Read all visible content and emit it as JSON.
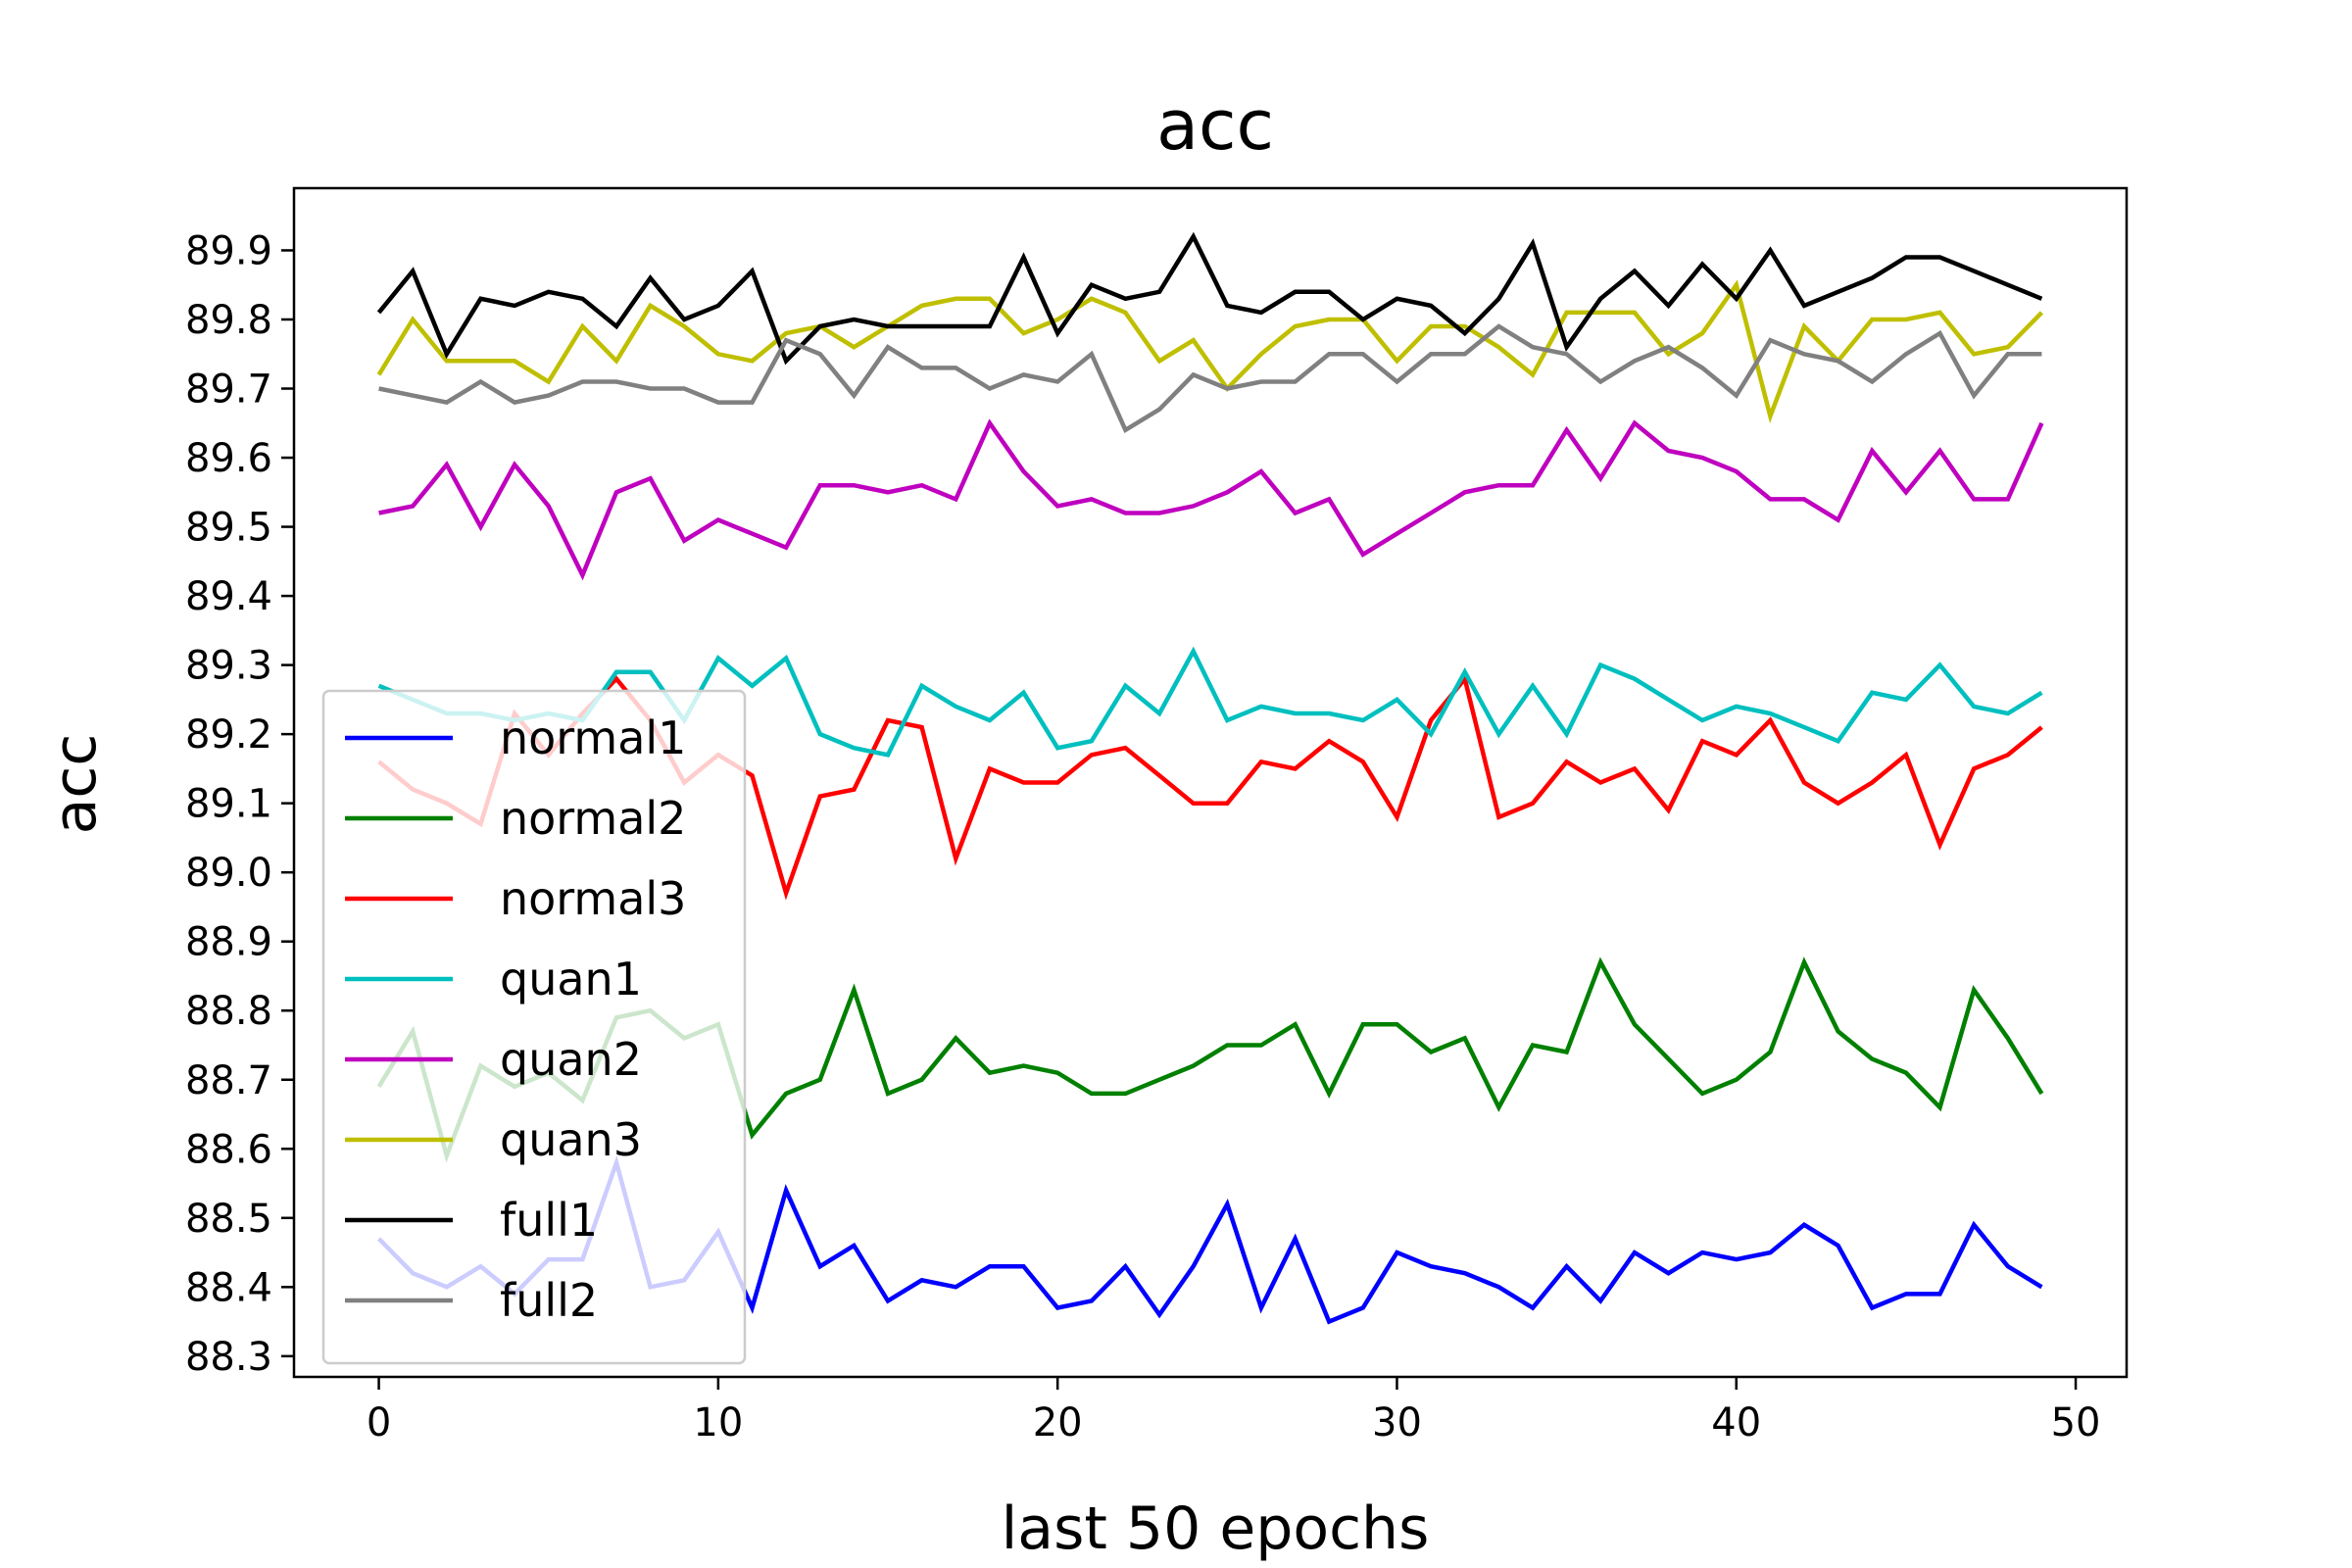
{
  "chart_data": {
    "type": "line",
    "title": "acc",
    "xlabel": "last 50 epochs",
    "ylabel": "acc",
    "xlim": [
      -2.5,
      51.5
    ],
    "ylim": [
      88.27,
      89.99
    ],
    "xticks": [
      0,
      10,
      20,
      30,
      40,
      50
    ],
    "yticks": [
      88.3,
      88.4,
      88.5,
      88.6,
      88.7,
      88.8,
      88.9,
      89.0,
      89.1,
      89.2,
      89.3,
      89.4,
      89.5,
      89.6,
      89.7,
      89.8,
      89.9
    ],
    "ytick_labels": [
      "88.3",
      "88.4",
      "88.5",
      "88.6",
      "88.7",
      "88.8",
      "88.9",
      "89.0",
      "89.1",
      "89.2",
      "89.3",
      "89.4",
      "89.5",
      "89.6",
      "89.7",
      "89.8",
      "89.9"
    ],
    "xtick_labels": [
      "0",
      "10",
      "20",
      "30",
      "40",
      "50"
    ],
    "grid": false,
    "legend_position": "lower-left",
    "x": [
      0,
      1,
      2,
      3,
      4,
      5,
      6,
      7,
      8,
      9,
      10,
      11,
      12,
      13,
      14,
      15,
      16,
      17,
      18,
      19,
      20,
      21,
      22,
      23,
      24,
      25,
      26,
      27,
      28,
      29,
      30,
      31,
      32,
      33,
      34,
      35,
      36,
      37,
      38,
      39,
      40,
      41,
      42,
      43,
      44,
      45,
      46,
      47,
      48,
      49
    ],
    "series": [
      {
        "name": "normal1",
        "color": "#0000ff",
        "values": [
          88.47,
          88.42,
          88.4,
          88.43,
          88.39,
          88.44,
          88.44,
          88.58,
          88.4,
          88.41,
          88.48,
          88.37,
          88.54,
          88.43,
          88.46,
          88.38,
          88.41,
          88.4,
          88.43,
          88.43,
          88.37,
          88.38,
          88.43,
          88.36,
          88.43,
          88.52,
          88.37,
          88.47,
          88.35,
          88.37,
          88.45,
          88.43,
          88.42,
          88.4,
          88.37,
          88.43,
          88.38,
          88.45,
          88.42,
          88.45,
          88.44,
          88.45,
          88.49,
          88.46,
          88.37,
          88.39,
          88.39,
          88.49,
          88.43,
          88.4
        ]
      },
      {
        "name": "normal2",
        "color": "#008000",
        "values": [
          88.69,
          88.77,
          88.59,
          88.72,
          88.69,
          88.71,
          88.67,
          88.79,
          88.8,
          88.76,
          88.78,
          88.62,
          88.68,
          88.7,
          88.83,
          88.68,
          88.7,
          88.76,
          88.71,
          88.72,
          88.71,
          88.68,
          88.68,
          88.7,
          88.72,
          88.75,
          88.75,
          88.78,
          88.68,
          88.78,
          88.78,
          88.74,
          88.76,
          88.66,
          88.75,
          88.74,
          88.87,
          88.78,
          88.73,
          88.68,
          88.7,
          88.74,
          88.87,
          88.77,
          88.73,
          88.71,
          88.66,
          88.83,
          88.76,
          88.68
        ]
      },
      {
        "name": "normal3",
        "color": "#ff0000",
        "values": [
          89.16,
          89.12,
          89.1,
          89.07,
          89.23,
          89.17,
          89.23,
          89.28,
          89.22,
          89.13,
          89.17,
          89.14,
          88.97,
          89.11,
          89.12,
          89.22,
          89.21,
          89.02,
          89.15,
          89.13,
          89.13,
          89.17,
          89.18,
          89.14,
          89.1,
          89.1,
          89.16,
          89.15,
          89.19,
          89.16,
          89.08,
          89.22,
          89.28,
          89.08,
          89.1,
          89.16,
          89.13,
          89.15,
          89.09,
          89.19,
          89.17,
          89.22,
          89.13,
          89.1,
          89.13,
          89.17,
          89.04,
          89.15,
          89.17,
          89.21
        ]
      },
      {
        "name": "quan1",
        "color": "#00bfbf",
        "values": [
          89.27,
          89.25,
          89.23,
          89.23,
          89.22,
          89.23,
          89.22,
          89.29,
          89.29,
          89.22,
          89.31,
          89.27,
          89.31,
          89.2,
          89.18,
          89.17,
          89.27,
          89.24,
          89.22,
          89.26,
          89.18,
          89.19,
          89.27,
          89.23,
          89.32,
          89.22,
          89.24,
          89.23,
          89.23,
          89.22,
          89.25,
          89.2,
          89.29,
          89.2,
          89.27,
          89.2,
          89.3,
          89.28,
          89.25,
          89.22,
          89.24,
          89.23,
          89.21,
          89.19,
          89.26,
          89.25,
          89.3,
          89.24,
          89.23,
          89.26
        ]
      },
      {
        "name": "quan2",
        "color": "#bf00bf",
        "values": [
          89.52,
          89.53,
          89.59,
          89.5,
          89.59,
          89.53,
          89.43,
          89.55,
          89.57,
          89.48,
          89.51,
          89.49,
          89.47,
          89.56,
          89.56,
          89.55,
          89.56,
          89.54,
          89.65,
          89.58,
          89.53,
          89.54,
          89.52,
          89.52,
          89.53,
          89.55,
          89.58,
          89.52,
          89.54,
          89.46,
          89.49,
          89.52,
          89.55,
          89.56,
          89.56,
          89.64,
          89.57,
          89.65,
          89.61,
          89.6,
          89.58,
          89.54,
          89.54,
          89.51,
          89.61,
          89.55,
          89.61,
          89.54,
          89.54,
          89.65
        ]
      },
      {
        "name": "quan3",
        "color": "#bfbf00",
        "values": [
          89.72,
          89.8,
          89.74,
          89.74,
          89.74,
          89.71,
          89.79,
          89.74,
          89.82,
          89.79,
          89.75,
          89.74,
          89.78,
          89.79,
          89.76,
          89.79,
          89.82,
          89.83,
          89.83,
          89.78,
          89.8,
          89.83,
          89.81,
          89.74,
          89.77,
          89.7,
          89.75,
          89.79,
          89.8,
          89.8,
          89.74,
          89.79,
          89.79,
          89.76,
          89.72,
          89.81,
          89.81,
          89.81,
          89.75,
          89.78,
          89.85,
          89.66,
          89.79,
          89.74,
          89.8,
          89.8,
          89.81,
          89.75,
          89.76,
          89.81
        ]
      },
      {
        "name": "full1",
        "color": "#000000",
        "values": [
          89.81,
          89.87,
          89.75,
          89.83,
          89.82,
          89.84,
          89.83,
          89.79,
          89.86,
          89.8,
          89.82,
          89.87,
          89.74,
          89.79,
          89.8,
          89.79,
          89.79,
          89.79,
          89.79,
          89.89,
          89.78,
          89.85,
          89.83,
          89.84,
          89.92,
          89.82,
          89.81,
          89.84,
          89.84,
          89.8,
          89.83,
          89.82,
          89.78,
          89.83,
          89.91,
          89.76,
          89.83,
          89.87,
          89.82,
          89.88,
          89.83,
          89.9,
          89.82,
          89.84,
          89.86,
          89.89,
          89.89,
          89.87,
          89.85,
          89.83
        ]
      },
      {
        "name": "full2",
        "color": "#808080",
        "values": [
          89.7,
          89.69,
          89.68,
          89.71,
          89.68,
          89.69,
          89.71,
          89.71,
          89.7,
          89.7,
          89.68,
          89.68,
          89.77,
          89.75,
          89.69,
          89.76,
          89.73,
          89.73,
          89.7,
          89.72,
          89.71,
          89.75,
          89.64,
          89.67,
          89.72,
          89.7,
          89.71,
          89.71,
          89.75,
          89.75,
          89.71,
          89.75,
          89.75,
          89.79,
          89.76,
          89.75,
          89.71,
          89.74,
          89.76,
          89.73,
          89.69,
          89.77,
          89.75,
          89.74,
          89.71,
          89.75,
          89.78,
          89.69,
          89.75,
          89.75
        ]
      }
    ]
  }
}
